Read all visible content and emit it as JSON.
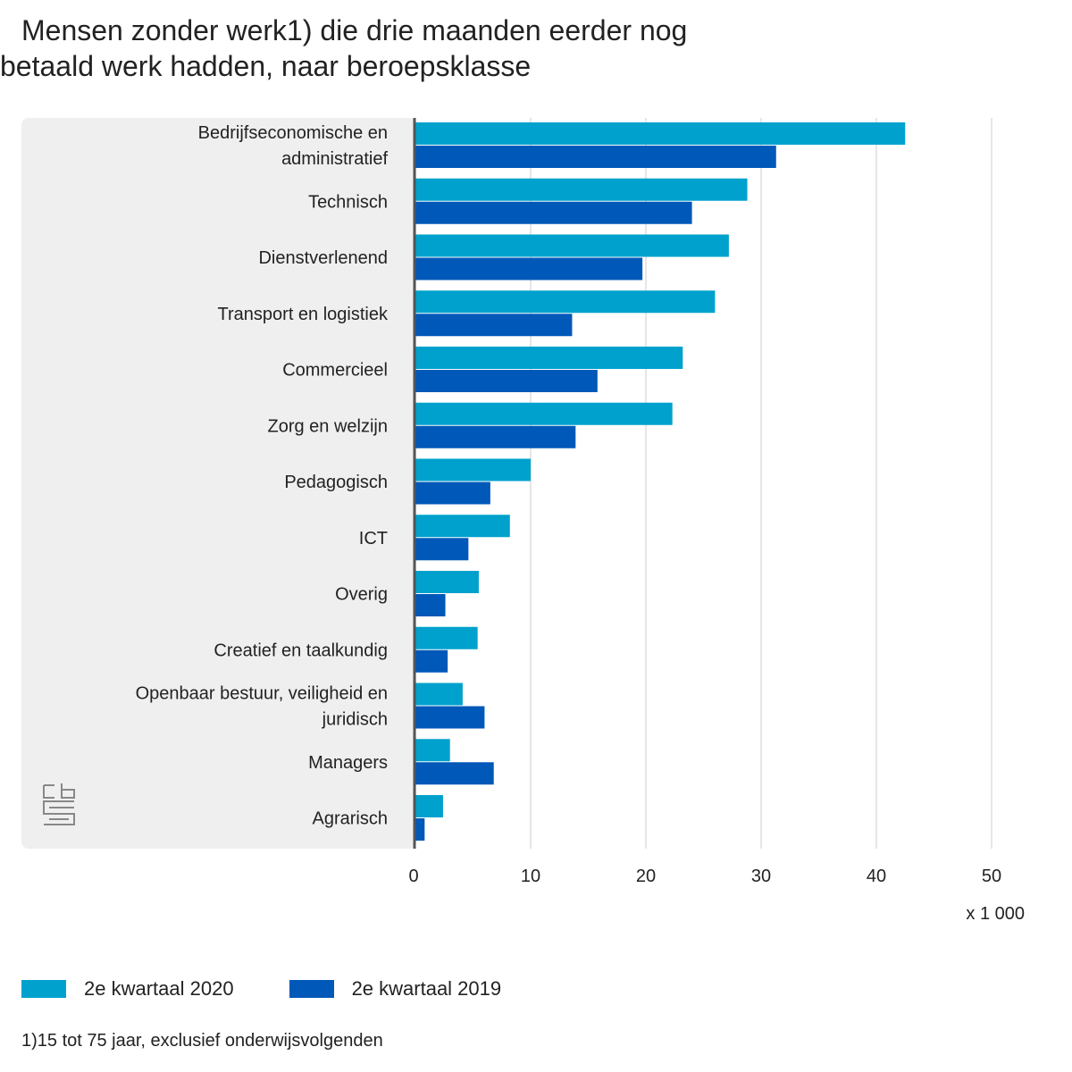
{
  "title_line1": "Mensen zonder werk1) die drie maanden eerder nog",
  "title_line2": "betaald werk hadden, naar beroepsklasse",
  "footnote": "1)15 tot 75 jaar, exclusief onderwijsvolgenden",
  "colors": {
    "series_2020": "#00a1cd",
    "series_2019": "#0058b8",
    "panel": "#efefef",
    "grid": "#cccccc",
    "axis": "#555555"
  },
  "chart_data": {
    "type": "bar",
    "orientation": "horizontal",
    "categories": [
      [
        "Bedrijfseconomische en",
        "administratief"
      ],
      [
        "Technisch"
      ],
      [
        "Dienstverlenend"
      ],
      [
        "Transport en logistiek"
      ],
      [
        "Commercieel"
      ],
      [
        "Zorg en welzijn"
      ],
      [
        "Pedagogisch"
      ],
      [
        "ICT"
      ],
      [
        "Overig"
      ],
      [
        "Creatief en taalkundig"
      ],
      [
        "Openbaar bestuur, veiligheid en",
        "juridisch"
      ],
      [
        "Managers"
      ],
      [
        "Agrarisch"
      ]
    ],
    "series": [
      {
        "name": "2e kwartaal 2020",
        "values": [
          42.5,
          28.8,
          27.2,
          26.0,
          23.2,
          22.3,
          10.0,
          8.2,
          5.5,
          5.4,
          4.1,
          3.0,
          2.4
        ]
      },
      {
        "name": "2e kwartaal 2019",
        "values": [
          31.3,
          24.0,
          19.7,
          13.6,
          15.8,
          13.9,
          6.5,
          4.6,
          2.6,
          2.8,
          6.0,
          6.8,
          0.8
        ]
      }
    ],
    "xlim": [
      0,
      50
    ],
    "ticks": [
      0,
      10,
      20,
      30,
      40,
      50
    ],
    "xunit": "x 1 000",
    "grid": true,
    "legend": "bottom-left"
  }
}
